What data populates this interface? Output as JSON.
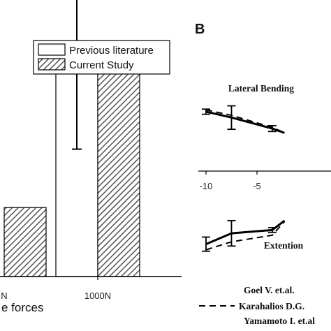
{
  "chart_data": [
    {
      "type": "bar",
      "panel_label": "",
      "categories": [
        "N",
        "1000N"
      ],
      "xlabel": "e forces",
      "ylim": [
        0,
        1
      ],
      "series": [
        {
          "name": "Previous literature",
          "values": [
            null,
            0.77
          ],
          "error": [
            null,
            0.29
          ],
          "fill": "#ffffff"
        },
        {
          "name": "Current Study",
          "values": [
            0.26,
            0.78
          ],
          "error": [
            null,
            null
          ],
          "fill": "hatch"
        }
      ],
      "legend": {
        "placement": "top-right",
        "entries": [
          "Previous literature",
          "Current Study"
        ]
      }
    },
    {
      "type": "line",
      "panel_label": "B",
      "x_ticks": [
        "-10",
        "-5"
      ],
      "xlim": [
        -10.7,
        -3.2
      ],
      "ylim": [
        -1,
        1
      ],
      "subplots": [
        {
          "title": "Lateral Bending",
          "series": [
            {
              "name": "Goel V. et.al.",
              "style": "solid",
              "x": [
                -10,
                -7.5,
                -3.5,
                -2.3
              ],
              "y": [
                0.62,
                0.46,
                0.16,
                0.04
              ],
              "error": [
                0.07,
                0.32,
                0.08,
                0
              ]
            },
            {
              "name": "Karahalios D.G.",
              "style": "dashed",
              "x": [
                -10,
                -7.5,
                -3.5,
                -2.3
              ],
              "y": [
                0.67,
                0.52,
                0.19,
                0.05
              ]
            }
          ]
        },
        {
          "title": "Extention",
          "series": [
            {
              "name": "Goel V. et.al.",
              "style": "solid",
              "x": [
                -10,
                -7.5,
                -3.5,
                -2.3
              ],
              "y": [
                -0.55,
                -0.32,
                -0.25,
                -0.05
              ],
              "error": [
                0.15,
                0.27,
                0.05,
                0
              ]
            },
            {
              "name": "Karahalios D.G.",
              "style": "dashed",
              "x": [
                -10,
                -7.5,
                -3.5,
                -2.3
              ],
              "y": [
                -0.67,
                -0.5,
                -0.36,
                -0.07
              ]
            }
          ]
        }
      ],
      "legend": {
        "placement": "bottom",
        "entries": [
          {
            "name": "Goel V. et.al.",
            "style": "none"
          },
          {
            "name": "Karahalios D.G.",
            "style": "dashed"
          },
          {
            "name": "Yamamoto I. et.al",
            "style": "none"
          }
        ]
      }
    }
  ]
}
